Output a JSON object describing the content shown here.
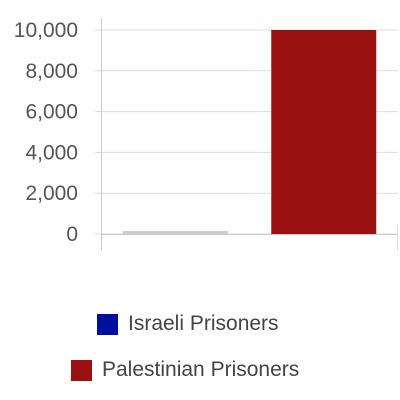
{
  "chart_data": {
    "type": "bar",
    "categories": [
      "Israeli Prisoners",
      "Palestinian Prisoners"
    ],
    "values": [
      20,
      10000
    ],
    "colors": [
      "#000f9f",
      "#9b1111"
    ],
    "zero_bar_color": "#cccccc",
    "yticks": [
      0,
      2000,
      4000,
      6000,
      8000,
      10000
    ],
    "ytick_labels": [
      "0",
      "2,000",
      "4,000",
      "6,000",
      "8,000",
      "10,000"
    ],
    "ylim": [
      0,
      10000
    ],
    "grid": true,
    "legend_placement": "bottom"
  },
  "legend": {
    "items": [
      {
        "label": "Israeli Prisoners",
        "color": "#000f9f"
      },
      {
        "label": "Palestinian Prisoners",
        "color": "#9b1111"
      }
    ]
  }
}
